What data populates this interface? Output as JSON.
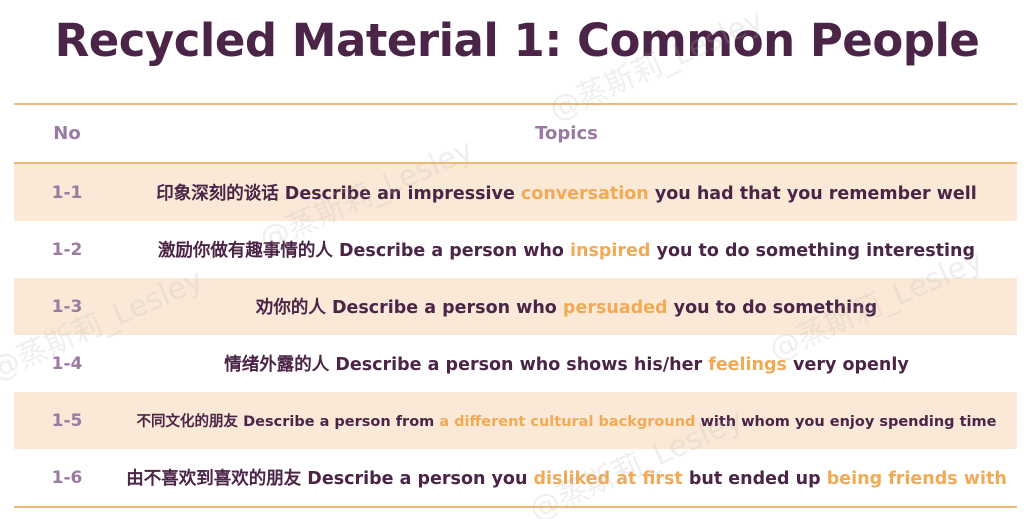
{
  "title": "Recycled Material 1: Common People",
  "table": {
    "headers": {
      "no": "No",
      "topics": "Topics"
    },
    "rows": [
      {
        "no": "1-1",
        "cn": "印象深刻的谈话",
        "parts": [
          "Describe an impressive ",
          "conversation",
          " you had that you remember well"
        ]
      },
      {
        "no": "1-2",
        "cn": "激励你做有趣事情的人",
        "parts": [
          "Describe a person who ",
          "inspired",
          " you to do something interesting"
        ]
      },
      {
        "no": "1-3",
        "cn": "劝你的人",
        "parts": [
          "Describe a person who ",
          "persuaded",
          " you to do something"
        ]
      },
      {
        "no": "1-4",
        "cn": "情绪外露的人",
        "parts": [
          "Describe a person who shows his/her ",
          "feelings",
          " very openly"
        ]
      },
      {
        "no": "1-5",
        "cn": "不同文化的朋友",
        "parts": [
          "Describe a person from ",
          "a different cultural background",
          " with whom you enjoy spending time"
        ]
      },
      {
        "no": "1-6",
        "cn": "由不喜欢到喜欢的朋友",
        "parts": [
          "Describe a person you ",
          "disliked at first",
          " but ended up ",
          "being friends with",
          ""
        ]
      }
    ]
  },
  "watermark": "@蒸斯莉_Lesley",
  "colors": {
    "title": "#4b2547",
    "accent": "#f1aa55",
    "row_shade": "#fbe9d7",
    "muted": "#9b7aa1"
  }
}
